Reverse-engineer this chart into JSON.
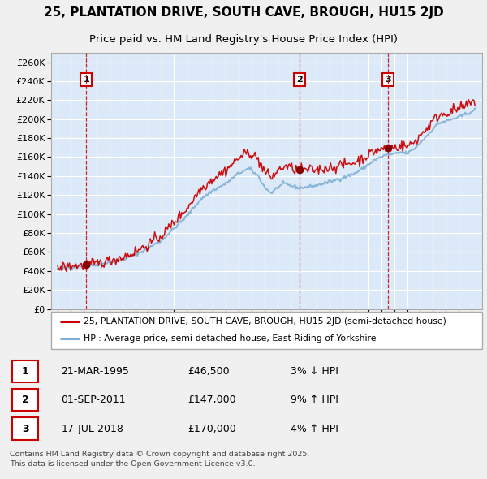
{
  "title": "25, PLANTATION DRIVE, SOUTH CAVE, BROUGH, HU15 2JD",
  "subtitle": "Price paid vs. HM Land Registry's House Price Index (HPI)",
  "legend_line1": "25, PLANTATION DRIVE, SOUTH CAVE, BROUGH, HU15 2JD (semi-detached house)",
  "legend_line2": "HPI: Average price, semi-detached house, East Riding of Yorkshire",
  "footer": "Contains HM Land Registry data © Crown copyright and database right 2025.\nThis data is licensed under the Open Government Licence v3.0.",
  "sale_events": [
    {
      "label": "1",
      "date": "21-MAR-1995",
      "price": 46500,
      "pct": "3%",
      "dir": "↓",
      "x_year": 1995.22
    },
    {
      "label": "2",
      "date": "01-SEP-2011",
      "price": 147000,
      "pct": "9%",
      "dir": "↑",
      "x_year": 2011.67
    },
    {
      "label": "3",
      "date": "17-JUL-2018",
      "price": 170000,
      "pct": "4%",
      "dir": "↑",
      "x_year": 2018.54
    }
  ],
  "hpi_anchors_t": [
    1993.0,
    1994.0,
    1995.0,
    1996.0,
    1997.0,
    1998.0,
    1999.0,
    2000.0,
    2001.0,
    2002.0,
    2003.0,
    2004.0,
    2005.0,
    2006.0,
    2007.0,
    2007.8,
    2008.5,
    2009.0,
    2009.5,
    2010.0,
    2010.5,
    2011.0,
    2011.5,
    2012.0,
    2013.0,
    2014.0,
    2015.0,
    2016.0,
    2017.0,
    2017.5,
    2018.0,
    2018.5,
    2019.0,
    2019.5,
    2020.0,
    2020.5,
    2021.0,
    2021.5,
    2022.0,
    2022.5,
    2023.0,
    2023.5,
    2024.0,
    2024.5,
    2025.3
  ],
  "hpi_anchors_p": [
    42000,
    44000,
    45000,
    46500,
    49000,
    52000,
    57000,
    64000,
    72000,
    85000,
    98000,
    115000,
    125000,
    132000,
    143000,
    148000,
    140000,
    128000,
    122000,
    128000,
    132000,
    130000,
    128000,
    128000,
    130000,
    134000,
    138000,
    143000,
    152000,
    157000,
    160000,
    163000,
    163000,
    165000,
    164000,
    168000,
    175000,
    182000,
    190000,
    196000,
    198000,
    200000,
    202000,
    205000,
    210000
  ],
  "ylim": [
    0,
    270000
  ],
  "yticks": [
    0,
    20000,
    40000,
    60000,
    80000,
    100000,
    120000,
    140000,
    160000,
    180000,
    200000,
    220000,
    240000,
    260000
  ],
  "xlim_start": 1992.5,
  "xlim_end": 2025.8,
  "background_color": "#f0f0f0",
  "plot_bg_color": "#dce9f8",
  "grid_color": "#ffffff",
  "hpi_line_color": "#7bafd4",
  "price_line_color": "#cc0000",
  "vline_color": "#cc0000",
  "marker_color": "#880000",
  "title_fontsize": 11,
  "subtitle_fontsize": 9.5,
  "axis_label_fontsize": 8,
  "legend_fontsize": 7.8,
  "footer_fontsize": 6.8
}
